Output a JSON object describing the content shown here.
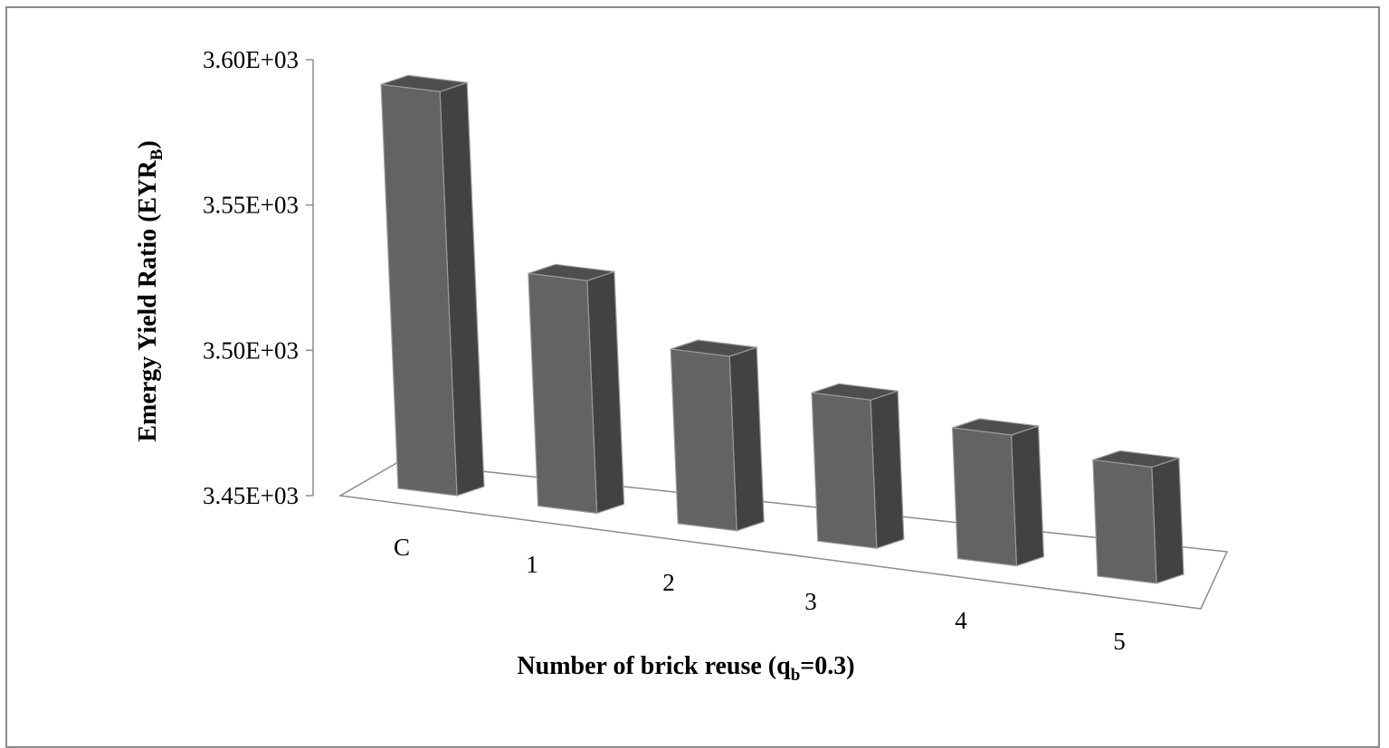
{
  "chart_data": {
    "type": "bar",
    "style": "3d-column",
    "categories": [
      "C",
      "1",
      "2",
      "3",
      "4",
      "5"
    ],
    "values": [
      3589,
      3530,
      3510,
      3501,
      3495,
      3490
    ],
    "ylabel": {
      "main": "Emergy Yield Ratio (EYR",
      "sub": "B",
      "tail": ")"
    },
    "xlabel": {
      "main": "Number of  brick reuse (q",
      "sub": "b",
      "tail": "=0.3)"
    },
    "ylim": [
      3450,
      3600
    ],
    "y_ticks": [
      3450,
      3500,
      3550,
      3600
    ],
    "y_tick_labels": [
      "3.45E+03",
      "3.50E+03",
      "3.55E+03",
      "3.60E+03"
    ],
    "grid": false,
    "legend": "none",
    "colors": {
      "front": "#636363",
      "side": "#424242",
      "top": "#4e4e4e",
      "edge": "#9a9a9a",
      "axis": "#8c8c8c"
    }
  }
}
